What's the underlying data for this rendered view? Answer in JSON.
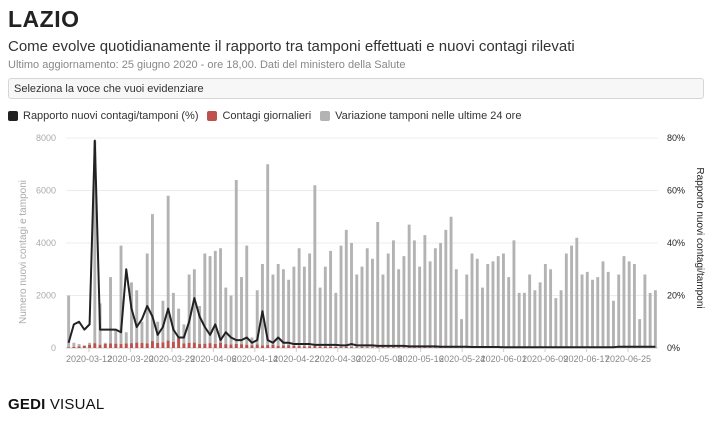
{
  "header": {
    "title": "LAZIO",
    "subtitle": "Come evolve quotidianamente il rapporto tra tamponi effettuati e nuovi contagi rilevati",
    "updated": "Ultimo aggiornamento: 25 giugno 2020 - ore 18,00. Dati del ministero della Salute"
  },
  "selector": {
    "label": "Seleziona la voce che vuoi evidenziare"
  },
  "legend": [
    {
      "label": "Rapporto nuovi contagi/tamponi (%)",
      "color": "#222222"
    },
    {
      "label": "Contagi giornalieri",
      "color": "#c0504d"
    },
    {
      "label": "Variazione tamponi nelle ultime 24 ore",
      "color": "#b3b3b3"
    }
  ],
  "brand": {
    "part1": "GEDI",
    "part2": " VISUAL"
  },
  "chart_data": {
    "type": "bar",
    "x_ticks": [
      "2020-03-12",
      "2020-03-20",
      "2020-03-29",
      "2020-04-06",
      "2020-04-14",
      "2020-04-22",
      "2020-04-30",
      "2020-05-08",
      "2020-05-16",
      "2020-05-24",
      "2020-06-01",
      "2020-06-09",
      "2020-06-17",
      "2020-06-25"
    ],
    "ylabel_left": "Numero nuovi contagi e tamponi",
    "ylabel_right": "Rapporto nuovi contagi/tamponi",
    "y_left_ticks": [
      "0",
      "2000",
      "4000",
      "6000",
      "8000"
    ],
    "y_right_ticks": [
      "0%",
      "20%",
      "40%",
      "60%",
      "80%"
    ],
    "y_left_range": [
      0,
      8000
    ],
    "y_right_range": [
      0,
      80
    ],
    "grid": "horizontal",
    "series": [
      {
        "name": "Variazione tamponi nelle ultime 24 ore",
        "type": "bar",
        "color": "#b3b3b3",
        "values": [
          2000,
          200,
          150,
          100,
          200,
          7900,
          1700,
          200,
          2700,
          700,
          3900,
          600,
          2500,
          2200,
          1000,
          3600,
          5100,
          1000,
          1800,
          5800,
          2100,
          1500,
          900,
          2800,
          3000,
          1600,
          3600,
          3500,
          3700,
          3800,
          2300,
          2000,
          6400,
          2700,
          3900,
          400,
          2200,
          3200,
          7000,
          2800,
          3200,
          3000,
          2600,
          3100,
          3800,
          3100,
          3600,
          6200,
          2300,
          3100,
          3700,
          2100,
          3900,
          4500,
          4000,
          2800,
          3100,
          3800,
          3400,
          4800,
          2800,
          3600,
          4100,
          3000,
          3500,
          4700,
          4100,
          3100,
          4300,
          3300,
          3800,
          4000,
          4500,
          5000,
          3000,
          1100,
          2800,
          3600,
          3400,
          2300,
          3200,
          3300,
          3500,
          3600,
          2700,
          4100,
          2100,
          2100,
          2800,
          2200,
          2500,
          3200,
          3000,
          1900,
          2200,
          3600,
          3900,
          4200,
          2800,
          2900,
          2600,
          2700,
          3300,
          2900,
          1800,
          2800,
          3500,
          3300,
          3200,
          1100,
          2800,
          2100,
          2200
        ]
      },
      {
        "name": "Contagi giornalieri",
        "type": "bar",
        "color": "#c0504d",
        "values": [
          20,
          40,
          60,
          80,
          120,
          180,
          120,
          150,
          170,
          160,
          150,
          170,
          180,
          200,
          190,
          170,
          260,
          190,
          210,
          280,
          230,
          380,
          170,
          190,
          200,
          150,
          160,
          180,
          150,
          200,
          140,
          130,
          150,
          140,
          120,
          100,
          130,
          90,
          110,
          120,
          80,
          90,
          100,
          80,
          70,
          60,
          60,
          70,
          50,
          50,
          50,
          40,
          30,
          40,
          30,
          20,
          30,
          20,
          15,
          20,
          20,
          15,
          20,
          15,
          15,
          15,
          15,
          15,
          20,
          15,
          15,
          15,
          10,
          10,
          10,
          10,
          10,
          10,
          10,
          10,
          10,
          5,
          5,
          5,
          5,
          5,
          5,
          5,
          5,
          5,
          5,
          5,
          5,
          5,
          5,
          5,
          5,
          5,
          5,
          10,
          10,
          10,
          10,
          10,
          10,
          10,
          10,
          5,
          5,
          5,
          5,
          5,
          5
        ]
      },
      {
        "name": "Rapporto nuovi contagi/tamponi (%)",
        "type": "line",
        "color": "#222222",
        "values": [
          2,
          9,
          10,
          7,
          9,
          79,
          7,
          7,
          7,
          7,
          6,
          30,
          15,
          8,
          11,
          16,
          12,
          5,
          8,
          15,
          7,
          4,
          4,
          10,
          19,
          12,
          8,
          5,
          9,
          3,
          6,
          4,
          3,
          3,
          4,
          2,
          3,
          14,
          3,
          2,
          4,
          2,
          2,
          1.5,
          1.5,
          1.5,
          1.5,
          1.2,
          1.2,
          1.2,
          1.2,
          1.2,
          1,
          1,
          1.5,
          1,
          1,
          1,
          1,
          0.8,
          0.8,
          0.8,
          0.8,
          0.8,
          0.8,
          0.6,
          0.6,
          0.6,
          0.6,
          0.6,
          0.6,
          0.5,
          0.5,
          0.5,
          0.5,
          0.5,
          0.5,
          0.4,
          0.4,
          0.4,
          0.4,
          0.4,
          0.4,
          0.3,
          0.3,
          0.3,
          0.3,
          0.3,
          0.3,
          0.3,
          0.3,
          0.3,
          0.3,
          0.3,
          0.3,
          0.3,
          0.3,
          0.3,
          0.3,
          0.3,
          0.3,
          0.3,
          0.3,
          0.3,
          0.3,
          0.5,
          0.5,
          0.5,
          0.5,
          0.5,
          0.5,
          0.5,
          0.5
        ]
      }
    ]
  }
}
